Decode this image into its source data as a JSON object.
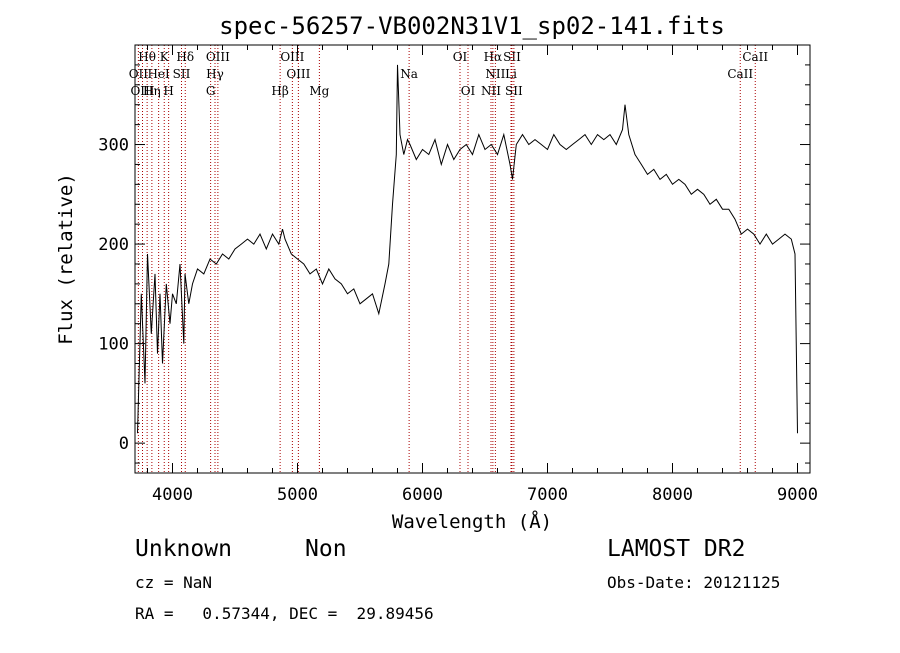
{
  "chart_data": {
    "type": "line",
    "title": "spec-56257-VB002N31V1_sp02-141.fits",
    "xlabel": "Wavelength (Å)",
    "ylabel": "Flux (relative)",
    "xlim": [
      3700,
      9100
    ],
    "ylim": [
      -30,
      400
    ],
    "xticks": [
      4000,
      5000,
      6000,
      7000,
      8000,
      9000
    ],
    "xtick_labels": [
      "4000",
      "5000",
      "6000",
      "7000",
      "8000",
      "9000"
    ],
    "yticks": [
      0,
      100,
      200,
      300
    ],
    "ytick_labels": [
      "0",
      "100",
      "200",
      "300"
    ],
    "grid": false,
    "line_color": "#000000",
    "marker_color": "#aa0000",
    "series": [
      {
        "x": [
          3720,
          3750,
          3780,
          3800,
          3830,
          3860,
          3880,
          3900,
          3920,
          3950,
          3980,
          4000,
          4030,
          4060,
          4090,
          4100,
          4130,
          4160,
          4200,
          4250,
          4300,
          4350,
          4400,
          4450,
          4500,
          4550,
          4600,
          4650,
          4700,
          4750,
          4800,
          4850,
          4880,
          4900,
          4950,
          5000,
          5050,
          5100,
          5150,
          5200,
          5250,
          5300,
          5350,
          5400,
          5450,
          5500,
          5550,
          5600,
          5650,
          5700,
          5730,
          5760,
          5790,
          5800,
          5820,
          5850,
          5880,
          5900,
          5950,
          6000,
          6050,
          6100,
          6150,
          6200,
          6250,
          6300,
          6350,
          6400,
          6450,
          6500,
          6550,
          6600,
          6650,
          6700,
          6720,
          6750,
          6800,
          6850,
          6900,
          6950,
          7000,
          7050,
          7100,
          7150,
          7200,
          7250,
          7300,
          7350,
          7400,
          7450,
          7500,
          7550,
          7600,
          7620,
          7650,
          7700,
          7750,
          7800,
          7850,
          7900,
          7950,
          8000,
          8050,
          8100,
          8150,
          8200,
          8250,
          8300,
          8350,
          8400,
          8450,
          8500,
          8550,
          8600,
          8650,
          8700,
          8750,
          8800,
          8850,
          8900,
          8950,
          8980,
          9000
        ],
        "y": [
          10,
          150,
          60,
          190,
          110,
          170,
          90,
          150,
          80,
          160,
          120,
          150,
          140,
          180,
          100,
          170,
          140,
          160,
          175,
          170,
          185,
          180,
          190,
          185,
          195,
          200,
          205,
          200,
          210,
          195,
          210,
          200,
          215,
          205,
          190,
          185,
          180,
          170,
          175,
          160,
          175,
          165,
          160,
          150,
          155,
          140,
          145,
          150,
          130,
          160,
          180,
          240,
          290,
          380,
          310,
          290,
          305,
          300,
          285,
          295,
          290,
          305,
          280,
          300,
          285,
          295,
          300,
          290,
          310,
          295,
          300,
          290,
          310,
          280,
          265,
          300,
          310,
          300,
          305,
          300,
          295,
          310,
          300,
          295,
          300,
          305,
          310,
          300,
          310,
          305,
          310,
          300,
          315,
          340,
          310,
          290,
          280,
          270,
          275,
          265,
          270,
          260,
          265,
          260,
          250,
          255,
          250,
          240,
          245,
          235,
          235,
          225,
          210,
          215,
          210,
          200,
          210,
          200,
          205,
          210,
          205,
          190,
          10
        ]
      }
    ],
    "line_markers": [
      {
        "label": "Hθ",
        "x": 3797,
        "row": 0
      },
      {
        "label": "K",
        "x": 3934,
        "row": 0
      },
      {
        "label": "Hδ",
        "x": 4102,
        "row": 0
      },
      {
        "label": "OIII",
        "x": 4363,
        "row": 0
      },
      {
        "label": "OIII",
        "x": 4959,
        "row": 0
      },
      {
        "label": "OI",
        "x": 6300,
        "row": 0
      },
      {
        "label": "Hα",
        "x": 6563,
        "row": 0
      },
      {
        "label": "SII",
        "x": 6716,
        "row": 0
      },
      {
        "label": "CaII",
        "x": 8662,
        "row": 0
      },
      {
        "label": "OII",
        "x": 3727,
        "row": 1
      },
      {
        "label": "HeI",
        "x": 3889,
        "row": 1
      },
      {
        "label": "SII",
        "x": 4072,
        "row": 1
      },
      {
        "label": "Hγ",
        "x": 4340,
        "row": 1
      },
      {
        "label": "OIII",
        "x": 5007,
        "row": 1
      },
      {
        "label": "Na",
        "x": 5893,
        "row": 1
      },
      {
        "label": "NII",
        "x": 6583,
        "row": 1
      },
      {
        "label": "Li",
        "x": 6708,
        "row": 1
      },
      {
        "label": "CaII",
        "x": 8542,
        "row": 1
      },
      {
        "label": "OIII",
        "x": 3760,
        "row": 2
      },
      {
        "label": "Hη",
        "x": 3835,
        "row": 2
      },
      {
        "label": "H",
        "x": 3969,
        "row": 2
      },
      {
        "label": "G",
        "x": 4305,
        "row": 2
      },
      {
        "label": "Hβ",
        "x": 4861,
        "row": 2
      },
      {
        "label": "Mg",
        "x": 5175,
        "row": 2
      },
      {
        "label": "OI",
        "x": 6364,
        "row": 2
      },
      {
        "label": "NII",
        "x": 6548,
        "row": 2
      },
      {
        "label": "SII",
        "x": 6731,
        "row": 2
      }
    ]
  },
  "footer": {
    "object_class": "Unknown",
    "object_subclass": "Non",
    "survey": "LAMOST DR2",
    "cz": "cz = NaN",
    "obs_date": "Obs-Date: 20121125",
    "radec": "RA =   0.57344, DEC =  29.89456"
  }
}
